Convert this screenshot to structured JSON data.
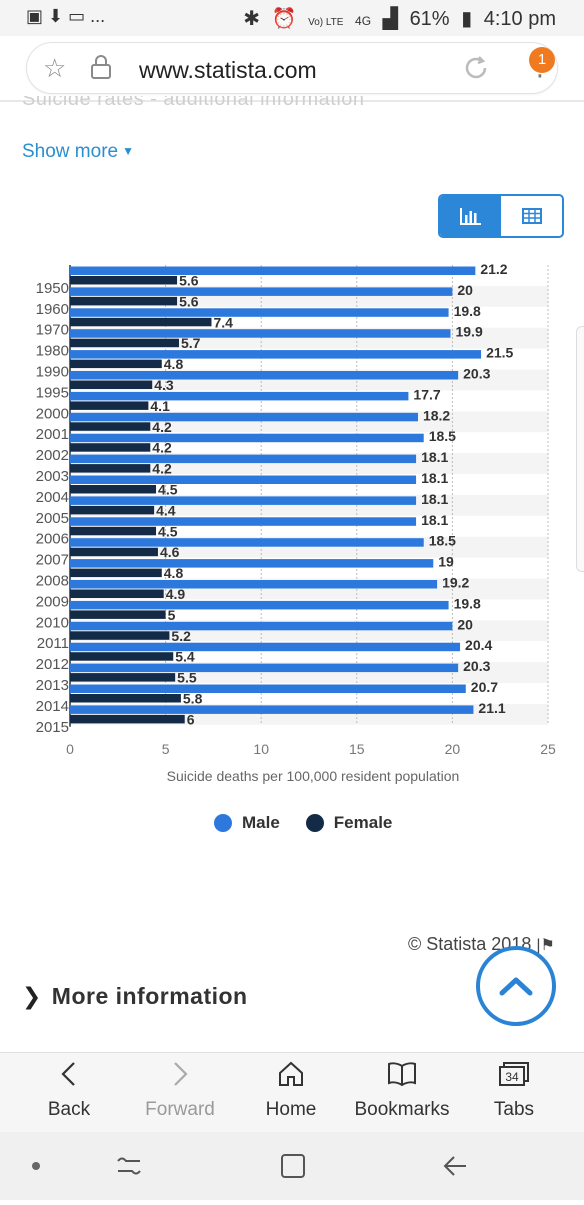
{
  "status_bar": {
    "left_icons": [
      "image-icon",
      "download-icon",
      "ticket-icon"
    ],
    "more": "...",
    "volte": "Vo) LTE",
    "network": "4G",
    "battery": "61%",
    "time": "4:10 pm"
  },
  "browser": {
    "url": "www.statista.com",
    "badge_count": "1"
  },
  "page": {
    "cut_heading": "Suicide rates - additional information",
    "show_more": "Show more",
    "copyright": "© Statista 2018",
    "more_information": "More information"
  },
  "legend": {
    "male": "Male",
    "female": "Female"
  },
  "colors": {
    "male": "#2c78dc",
    "female": "#142b47",
    "accent": "#2d87d9"
  },
  "chart_data": {
    "type": "bar",
    "orientation": "horizontal",
    "categories": [
      "1950",
      "1960",
      "1970",
      "1980",
      "1990",
      "1995",
      "2000",
      "2001",
      "2002",
      "2003",
      "2004",
      "2005",
      "2006",
      "2007",
      "2008",
      "2009",
      "2010",
      "2011",
      "2012",
      "2013",
      "2014",
      "2015"
    ],
    "series": [
      {
        "name": "Male",
        "values": [
          21.2,
          20,
          19.8,
          19.9,
          21.5,
          20.3,
          17.7,
          18.2,
          18.5,
          18.1,
          18.1,
          18.1,
          18.1,
          18.5,
          19,
          19.2,
          19.8,
          20,
          20.4,
          20.3,
          20.7,
          21.1
        ]
      },
      {
        "name": "Female",
        "values": [
          5.6,
          5.6,
          7.4,
          5.7,
          4.8,
          4.3,
          4.1,
          4.2,
          4.2,
          4.2,
          4.5,
          4.4,
          4.5,
          4.6,
          4.8,
          4.9,
          5,
          5.2,
          5.4,
          5.5,
          5.8,
          6
        ]
      }
    ],
    "xlabel": "Suicide deaths per 100,000 resident population",
    "xlim": [
      0,
      25
    ],
    "xticks": [
      0,
      5,
      10,
      15,
      20,
      25
    ],
    "grid": true,
    "legend_position": "bottom"
  },
  "nav": {
    "back": "Back",
    "forward": "Forward",
    "home": "Home",
    "bookmarks": "Bookmarks",
    "tabs": "Tabs",
    "tabs_count": "34"
  }
}
